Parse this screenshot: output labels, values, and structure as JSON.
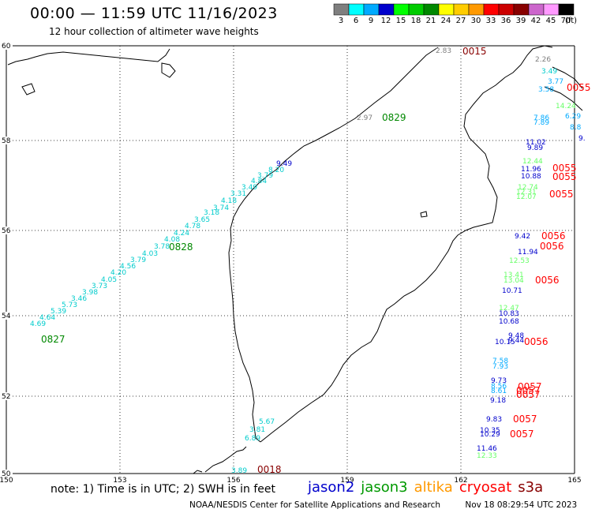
{
  "header": {
    "title": "00:00 — 11:59 UTC 11/16/2023",
    "subtitle": "12 hour collection of altimeter wave heights"
  },
  "legend": {
    "unit": "(ft)",
    "bins": [
      {
        "label": "3",
        "color": "#7f7f7f"
      },
      {
        "label": "6",
        "color": "#00ffff"
      },
      {
        "label": "9",
        "color": "#00aaff"
      },
      {
        "label": "12",
        "color": "#0000cc"
      },
      {
        "label": "15",
        "color": "#00ff00"
      },
      {
        "label": "18",
        "color": "#00cc00"
      },
      {
        "label": "21",
        "color": "#008800"
      },
      {
        "label": "24",
        "color": "#ffff00"
      },
      {
        "label": "27",
        "color": "#ffcc00"
      },
      {
        "label": "30",
        "color": "#ff9900"
      },
      {
        "label": "33",
        "color": "#ff0000"
      },
      {
        "label": "36",
        "color": "#cc0000"
      },
      {
        "label": "39",
        "color": "#880000"
      },
      {
        "label": "42",
        "color": "#cc66cc"
      },
      {
        "label": "45",
        "color": "#ff99ff"
      },
      {
        "label": "70",
        "color": "#000000"
      }
    ]
  },
  "axes": {
    "lat_labels": [
      "60",
      "58",
      "56",
      "54",
      "52",
      "50"
    ],
    "lon_labels": [
      "150",
      "153",
      "156",
      "159",
      "162",
      "165"
    ]
  },
  "track_times": [
    {
      "text": "0015",
      "color": "#880000"
    },
    {
      "text": "0829",
      "color": "#008800"
    },
    {
      "text": "0828",
      "color": "#008800"
    },
    {
      "text": "0827",
      "color": "#008800"
    },
    {
      "text": "0018",
      "color": "#880000"
    },
    {
      "text": "0055",
      "color": "#ff0000"
    },
    {
      "text": "0055",
      "color": "#ff0000"
    },
    {
      "text": "0055",
      "color": "#ff0000"
    },
    {
      "text": "0055",
      "color": "#ff0000"
    },
    {
      "text": "0056",
      "color": "#ff0000"
    },
    {
      "text": "0056",
      "color": "#ff0000"
    },
    {
      "text": "0056",
      "color": "#ff0000"
    },
    {
      "text": "0056",
      "color": "#ff0000"
    },
    {
      "text": "0057",
      "color": "#ff0000"
    },
    {
      "text": "0057",
      "color": "#ff0000"
    },
    {
      "text": "0057",
      "color": "#ff0000"
    },
    {
      "text": "0057",
      "color": "#ff0000"
    },
    {
      "text": "0057",
      "color": "#ff0000"
    }
  ],
  "wave_labels": [
    {
      "text": "2.83",
      "color": "#7f7f7f"
    },
    {
      "text": "2.26",
      "color": "#7f7f7f"
    },
    {
      "text": "3.49",
      "color": "#00cccc"
    },
    {
      "text": "3.77",
      "color": "#00aaff"
    },
    {
      "text": "3.58",
      "color": "#00aaff"
    },
    {
      "text": "14.24",
      "color": "#66ff66"
    },
    {
      "text": "7.86",
      "color": "#00aaff"
    },
    {
      "text": "7.89",
      "color": "#00aaff"
    },
    {
      "text": "6.29",
      "color": "#00aaff"
    },
    {
      "text": "8.8",
      "color": "#00aaff"
    },
    {
      "text": "11.02",
      "color": "#0000cc"
    },
    {
      "text": "9.89",
      "color": "#0000cc"
    },
    {
      "text": "9.",
      "color": "#0000cc"
    },
    {
      "text": "2.97",
      "color": "#7f7f7f"
    },
    {
      "text": "9.49",
      "color": "#0000cc"
    },
    {
      "text": "12.44",
      "color": "#66ff66"
    },
    {
      "text": "11.96",
      "color": "#0000cc"
    },
    {
      "text": "10.88",
      "color": "#0000cc"
    },
    {
      "text": "12.74",
      "color": "#66ff66"
    },
    {
      "text": "12.31",
      "color": "#66ff66"
    },
    {
      "text": "12.07",
      "color": "#66ff66"
    },
    {
      "text": "9.42",
      "color": "#0000cc"
    },
    {
      "text": "11.94",
      "color": "#0000cc"
    },
    {
      "text": "12.53",
      "color": "#66ff66"
    },
    {
      "text": "13.41",
      "color": "#66ff66"
    },
    {
      "text": "13.04",
      "color": "#66ff66"
    },
    {
      "text": "10.71",
      "color": "#0000cc"
    },
    {
      "text": "12.47",
      "color": "#66ff66"
    },
    {
      "text": "10.83",
      "color": "#0000cc"
    },
    {
      "text": "10.68",
      "color": "#0000cc"
    },
    {
      "text": "9.48",
      "color": "#0000cc"
    },
    {
      "text": "9.44",
      "color": "#0000cc"
    },
    {
      "text": "10.15",
      "color": "#0000cc"
    },
    {
      "text": "7.58",
      "color": "#00aaff"
    },
    {
      "text": "7.93",
      "color": "#00aaff"
    },
    {
      "text": "9.73",
      "color": "#0000cc"
    },
    {
      "text": "8.56",
      "color": "#00aaff"
    },
    {
      "text": "8.61",
      "color": "#00aaff"
    },
    {
      "text": "9.18",
      "color": "#0000cc"
    },
    {
      "text": "9.83",
      "color": "#0000cc"
    },
    {
      "text": "10.35",
      "color": "#0000cc"
    },
    {
      "text": "10.29",
      "color": "#0000cc"
    },
    {
      "text": "11.46",
      "color": "#0000cc"
    },
    {
      "text": "12.33",
      "color": "#66ff66"
    },
    {
      "text": "5.67",
      "color": "#00cccc"
    },
    {
      "text": "3.81",
      "color": "#00cccc"
    },
    {
      "text": "6.89",
      "color": "#00cccc"
    },
    {
      "text": "3.89",
      "color": "#00cccc"
    },
    {
      "text": "8.20",
      "color": "#00cccc"
    },
    {
      "text": "3.79",
      "color": "#00cccc"
    },
    {
      "text": "4.84",
      "color": "#00cccc"
    },
    {
      "text": "3.49",
      "color": "#00cccc"
    },
    {
      "text": "3.31",
      "color": "#00cccc"
    },
    {
      "text": "4.18",
      "color": "#00cccc"
    },
    {
      "text": "3.74",
      "color": "#00cccc"
    },
    {
      "text": "3.18",
      "color": "#00cccc"
    },
    {
      "text": "3.65",
      "color": "#00cccc"
    },
    {
      "text": "4.78",
      "color": "#00cccc"
    },
    {
      "text": "4.24",
      "color": "#00cccc"
    },
    {
      "text": "4.08",
      "color": "#00cccc"
    },
    {
      "text": "3.78",
      "color": "#00cccc"
    },
    {
      "text": "4.03",
      "color": "#00cccc"
    },
    {
      "text": "3.79",
      "color": "#00cccc"
    },
    {
      "text": "4.56",
      "color": "#00cccc"
    },
    {
      "text": "4.20",
      "color": "#00cccc"
    },
    {
      "text": "4.05",
      "color": "#00cccc"
    },
    {
      "text": "3.73",
      "color": "#00cccc"
    },
    {
      "text": "3.98",
      "color": "#00cccc"
    },
    {
      "text": "3.46",
      "color": "#00cccc"
    },
    {
      "text": "5.73",
      "color": "#00cccc"
    },
    {
      "text": "5.39",
      "color": "#00cccc"
    },
    {
      "text": "4.64",
      "color": "#00cccc"
    },
    {
      "text": "4.69",
      "color": "#00cccc"
    }
  ],
  "footer": {
    "note": "note: 1) Time is in UTC; 2) SWH is in feet",
    "satellites": [
      {
        "name": "jason2",
        "color": "#0000cc"
      },
      {
        "name": "jason3",
        "color": "#009900"
      },
      {
        "name": "altika",
        "color": "#ff9900"
      },
      {
        "name": "cryosat",
        "color": "#ff0000"
      },
      {
        "name": "s3a",
        "color": "#880000"
      }
    ],
    "credit": "NOAA/NESDIS Center for Satellite Applications and Research",
    "generated": "Nov 18 08:29:54 UTC 2023"
  }
}
